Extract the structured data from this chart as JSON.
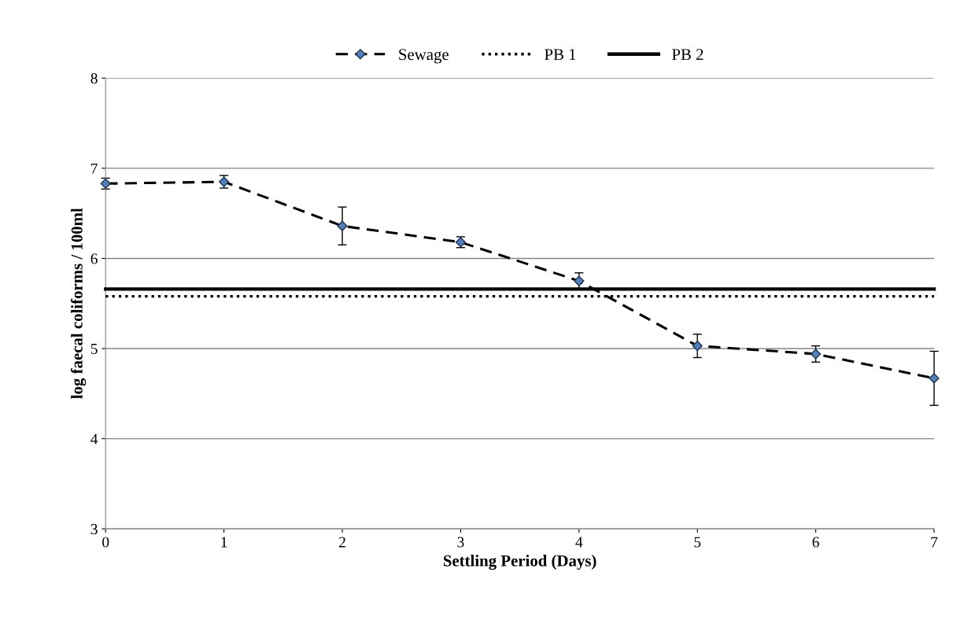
{
  "chart_data": {
    "type": "line",
    "xlabel": "Settling Period (Days)",
    "ylabel": "log faecal coliforms / 100ml",
    "x": [
      0,
      1,
      2,
      3,
      4,
      5,
      6,
      7
    ],
    "series": [
      {
        "name": "Sewage",
        "color": "#000000",
        "line_style": "dashed",
        "marker": "diamond",
        "values": [
          6.83,
          6.85,
          6.36,
          6.18,
          5.75,
          5.03,
          4.94,
          4.67
        ],
        "errors": [
          0.06,
          0.07,
          0.21,
          0.06,
          0.09,
          0.13,
          0.09,
          0.3
        ]
      },
      {
        "name": "PB 1",
        "color": "#000000",
        "line_style": "dotted",
        "marker": "none",
        "values": [
          5.58,
          5.58,
          5.58,
          5.58,
          5.58,
          5.58,
          5.58,
          5.58
        ]
      },
      {
        "name": "PB 2",
        "color": "#000000",
        "line_style": "solid",
        "marker": "none",
        "values": [
          5.66,
          5.66,
          5.66,
          5.66,
          5.66,
          5.66,
          5.66,
          5.66
        ]
      }
    ],
    "xlim": [
      0,
      7
    ],
    "xticks": [
      0,
      1,
      2,
      3,
      4,
      5,
      6,
      7
    ],
    "ylim": [
      3,
      8
    ],
    "yticks": [
      3,
      4,
      5,
      6,
      7,
      8
    ],
    "grid": "y",
    "legend": "top"
  }
}
